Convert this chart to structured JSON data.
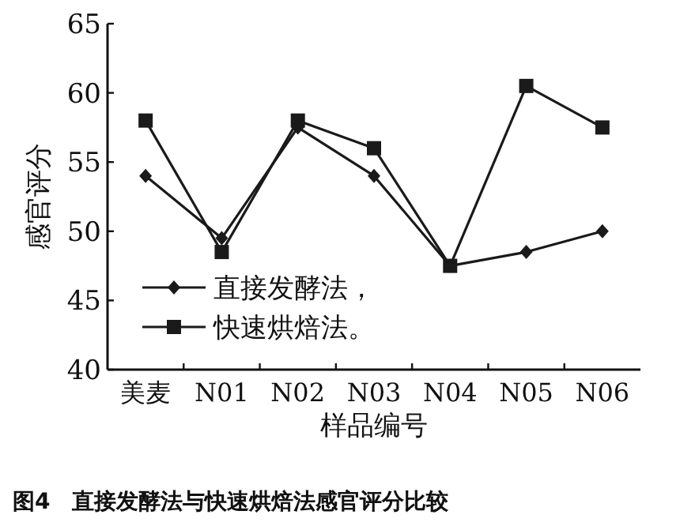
{
  "chart_data": {
    "type": "line",
    "xlabel": "样品编号",
    "ylabel": "感官评分",
    "categories": [
      "美麦",
      "N01",
      "N02",
      "N03",
      "N04",
      "N05",
      "N06"
    ],
    "series": [
      {
        "name": "直接发酵法，",
        "color": "#1a1a1a",
        "marker": "diamond",
        "values": [
          54,
          49.5,
          57.5,
          54,
          47.5,
          48.5,
          50
        ]
      },
      {
        "name": "快速烘焙法。",
        "color": "#1a1a1a",
        "marker": "square",
        "values": [
          58,
          48.5,
          58,
          56,
          47.5,
          60.5,
          57.5
        ]
      }
    ],
    "ylim": [
      40,
      65
    ],
    "yticks": [
      40,
      45,
      50,
      55,
      60,
      65
    ],
    "grid": false,
    "legend": "bottom left",
    "line_style": "solid",
    "annotations": [
      "图4　直接发酵法与快速烘焙法感官评分比较"
    ]
  }
}
